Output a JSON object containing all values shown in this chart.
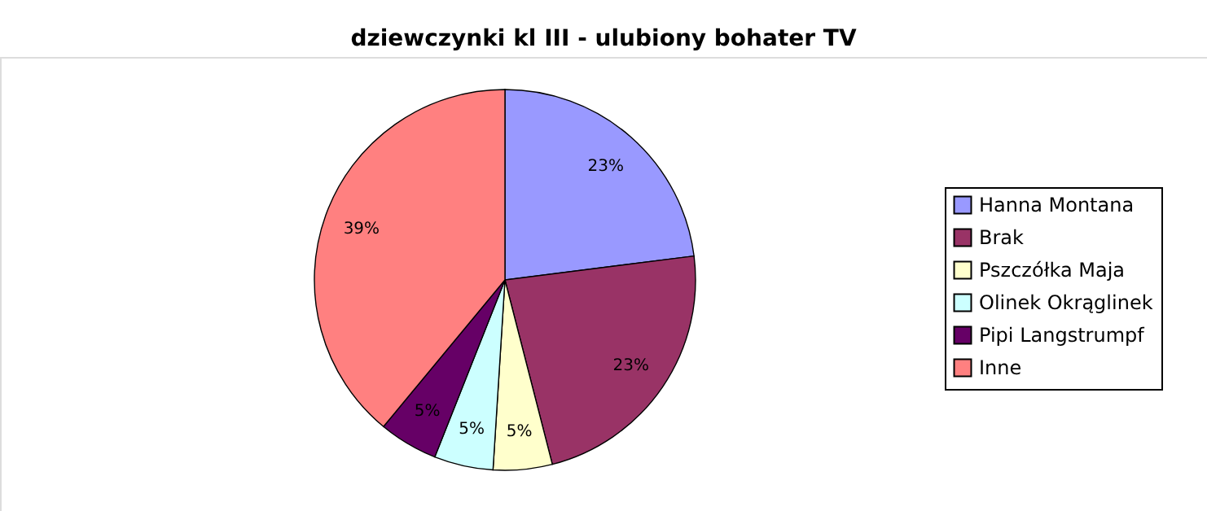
{
  "chart_data": {
    "type": "pie",
    "title": "dziewczynki kl III - ulubiony bohater TV",
    "categories": [
      "Hanna Montana",
      "Brak",
      "Pszczółka Maja",
      "Olinek Okrąglinek",
      "Pipi Langstrumpf",
      "Inne"
    ],
    "values": [
      23,
      23,
      5,
      5,
      5,
      39
    ],
    "colors": [
      "#9999ff",
      "#993366",
      "#ffffcc",
      "#ccffff",
      "#660066",
      "#ff8080"
    ],
    "value_labels": [
      "23%",
      "23%",
      "5%",
      "5%",
      "5%",
      "39%"
    ],
    "legend": "right"
  }
}
